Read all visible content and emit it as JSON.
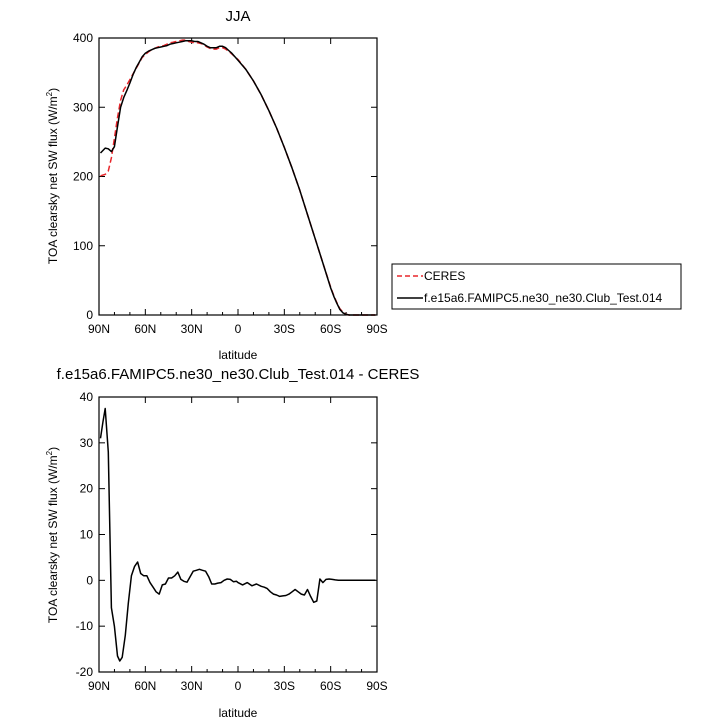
{
  "chart_data": [
    {
      "type": "line",
      "title": "JJA",
      "xlabel": "latitude",
      "ylabel": "TOA clearsky net SW flux (W/m",
      "ylabel_superscript": "2",
      "ylabel_suffix": ")",
      "xlim": [
        90,
        -90
      ],
      "ylim": [
        0,
        400
      ],
      "x_ticks": [
        90,
        60,
        30,
        0,
        -30,
        -60,
        -90
      ],
      "x_tick_labels": [
        "90N",
        "60N",
        "30N",
        "0",
        "30S",
        "60S",
        "90S"
      ],
      "y_ticks": [
        0,
        100,
        200,
        300,
        400
      ],
      "y_tick_labels": [
        "0",
        "100",
        "200",
        "300",
        "400"
      ],
      "grid": false,
      "legend_position": "right",
      "x": [
        89,
        86,
        84,
        82,
        80,
        78,
        76,
        74,
        72,
        70,
        68,
        66,
        64,
        62,
        60,
        58,
        56,
        54,
        52,
        50,
        48,
        46,
        44,
        42,
        40,
        38,
        36,
        34,
        32,
        30,
        28,
        26,
        24,
        22,
        20,
        18,
        16,
        14,
        12,
        10,
        8,
        6,
        4,
        2,
        0,
        -5,
        -10,
        -15,
        -20,
        -25,
        -30,
        -35,
        -40,
        -45,
        -50,
        -55,
        -60,
        -62,
        -64,
        -66,
        -68,
        -70,
        -72,
        -75,
        -80,
        -85,
        -89
      ],
      "series": [
        {
          "name": "CERES",
          "color": "#e8262b",
          "dash": "dashed",
          "values": [
            201,
            203,
            208,
            227,
            255,
            285,
            310,
            325,
            332,
            340,
            348,
            356,
            364,
            372,
            376,
            380,
            383,
            385,
            387,
            388,
            389,
            391,
            393,
            394,
            395,
            396,
            397,
            397,
            395,
            394,
            393,
            393,
            392,
            390,
            387,
            385,
            384,
            384,
            386,
            386,
            384,
            381,
            377,
            373,
            369,
            355,
            338,
            318,
            295,
            270,
            242,
            212,
            180,
            145,
            110,
            75,
            40,
            28,
            18,
            9,
            4,
            1,
            0,
            0,
            0,
            0,
            0
          ]
        },
        {
          "name": "f.e15a6.FAMIPC5.ne30_ne30.Club_Test.014",
          "color": "#000000",
          "dash": "solid",
          "values": [
            234,
            241,
            240,
            236,
            243,
            272,
            300,
            314,
            324,
            335,
            347,
            357,
            365,
            373,
            378,
            381,
            383,
            385,
            386,
            387,
            388,
            389,
            391,
            392,
            393,
            394,
            395,
            396,
            396,
            396,
            395,
            395,
            393,
            391,
            388,
            386,
            386,
            386,
            388,
            388,
            386,
            382,
            378,
            373,
            368,
            355,
            338,
            318,
            295,
            270,
            242,
            212,
            180,
            145,
            110,
            75,
            39,
            27,
            17,
            8,
            3,
            1,
            0,
            0,
            0,
            0,
            0
          ]
        }
      ]
    },
    {
      "type": "line",
      "title": "f.e15a6.FAMIPC5.ne30_ne30.Club_Test.014 - CERES",
      "xlabel": "latitude",
      "ylabel": "TOA clearsky net SW flux (W/m",
      "ylabel_superscript": "2",
      "ylabel_suffix": ")",
      "xlim": [
        90,
        -90
      ],
      "ylim": [
        -20,
        40
      ],
      "x_ticks": [
        90,
        60,
        30,
        0,
        -30,
        -60,
        -90
      ],
      "x_tick_labels": [
        "90N",
        "60N",
        "30N",
        "0",
        "30S",
        "60S",
        "90S"
      ],
      "y_ticks": [
        -20,
        -10,
        0,
        10,
        20,
        30,
        40
      ],
      "y_tick_labels": [
        "-20",
        "-10",
        "0",
        "10",
        "20",
        "30",
        "40"
      ],
      "grid": false,
      "x": [
        89,
        87.5,
        86,
        84,
        82,
        80,
        78,
        76.5,
        75,
        73,
        71,
        69,
        67,
        65,
        63,
        61,
        59,
        57,
        55,
        53,
        51,
        49,
        47,
        45,
        43,
        41,
        39,
        37,
        35,
        33,
        31,
        29,
        27,
        25,
        23,
        21,
        19,
        17,
        15,
        13,
        11,
        9,
        7,
        5,
        3,
        1,
        0,
        -3,
        -6,
        -9,
        -12,
        -15,
        -17,
        -19,
        -21,
        -23,
        -25,
        -27,
        -29,
        -31,
        -33,
        -35,
        -37,
        -39,
        -41,
        -43,
        -45,
        -47,
        -49,
        -51,
        -53,
        -55,
        -57,
        -59,
        -61,
        -63,
        -65,
        -67,
        -69,
        -71,
        -73,
        -75,
        -78,
        -81,
        -84,
        -87,
        -89
      ],
      "y": [
        31,
        34.5,
        37.5,
        28,
        -6,
        -10,
        -16.5,
        -17.6,
        -16.8,
        -12,
        -5,
        1,
        3,
        4,
        1.5,
        1,
        1,
        -0.5,
        -1.5,
        -2.5,
        -3,
        -1,
        -0.8,
        0.5,
        0.5,
        1,
        1.8,
        0.2,
        -0.2,
        -0.4,
        0.8,
        2,
        2.2,
        2.4,
        2.2,
        2,
        0.8,
        -0.8,
        -0.8,
        -0.6,
        -0.5,
        0,
        0.3,
        0.2,
        -0.3,
        -0.2,
        -0.5,
        -1,
        -0.5,
        -1.2,
        -0.8,
        -1.3,
        -1.5,
        -1.8,
        -2.5,
        -3,
        -3.2,
        -3.5,
        -3.4,
        -3.3,
        -3,
        -2.5,
        -2,
        -2.5,
        -3,
        -3.2,
        -2,
        -3.5,
        -4.8,
        -4.5,
        0.3,
        -0.5,
        0.2,
        0.3,
        0.2,
        0.1,
        0,
        0,
        0,
        0,
        0,
        0,
        0,
        0,
        0,
        0,
        0
      ]
    }
  ]
}
